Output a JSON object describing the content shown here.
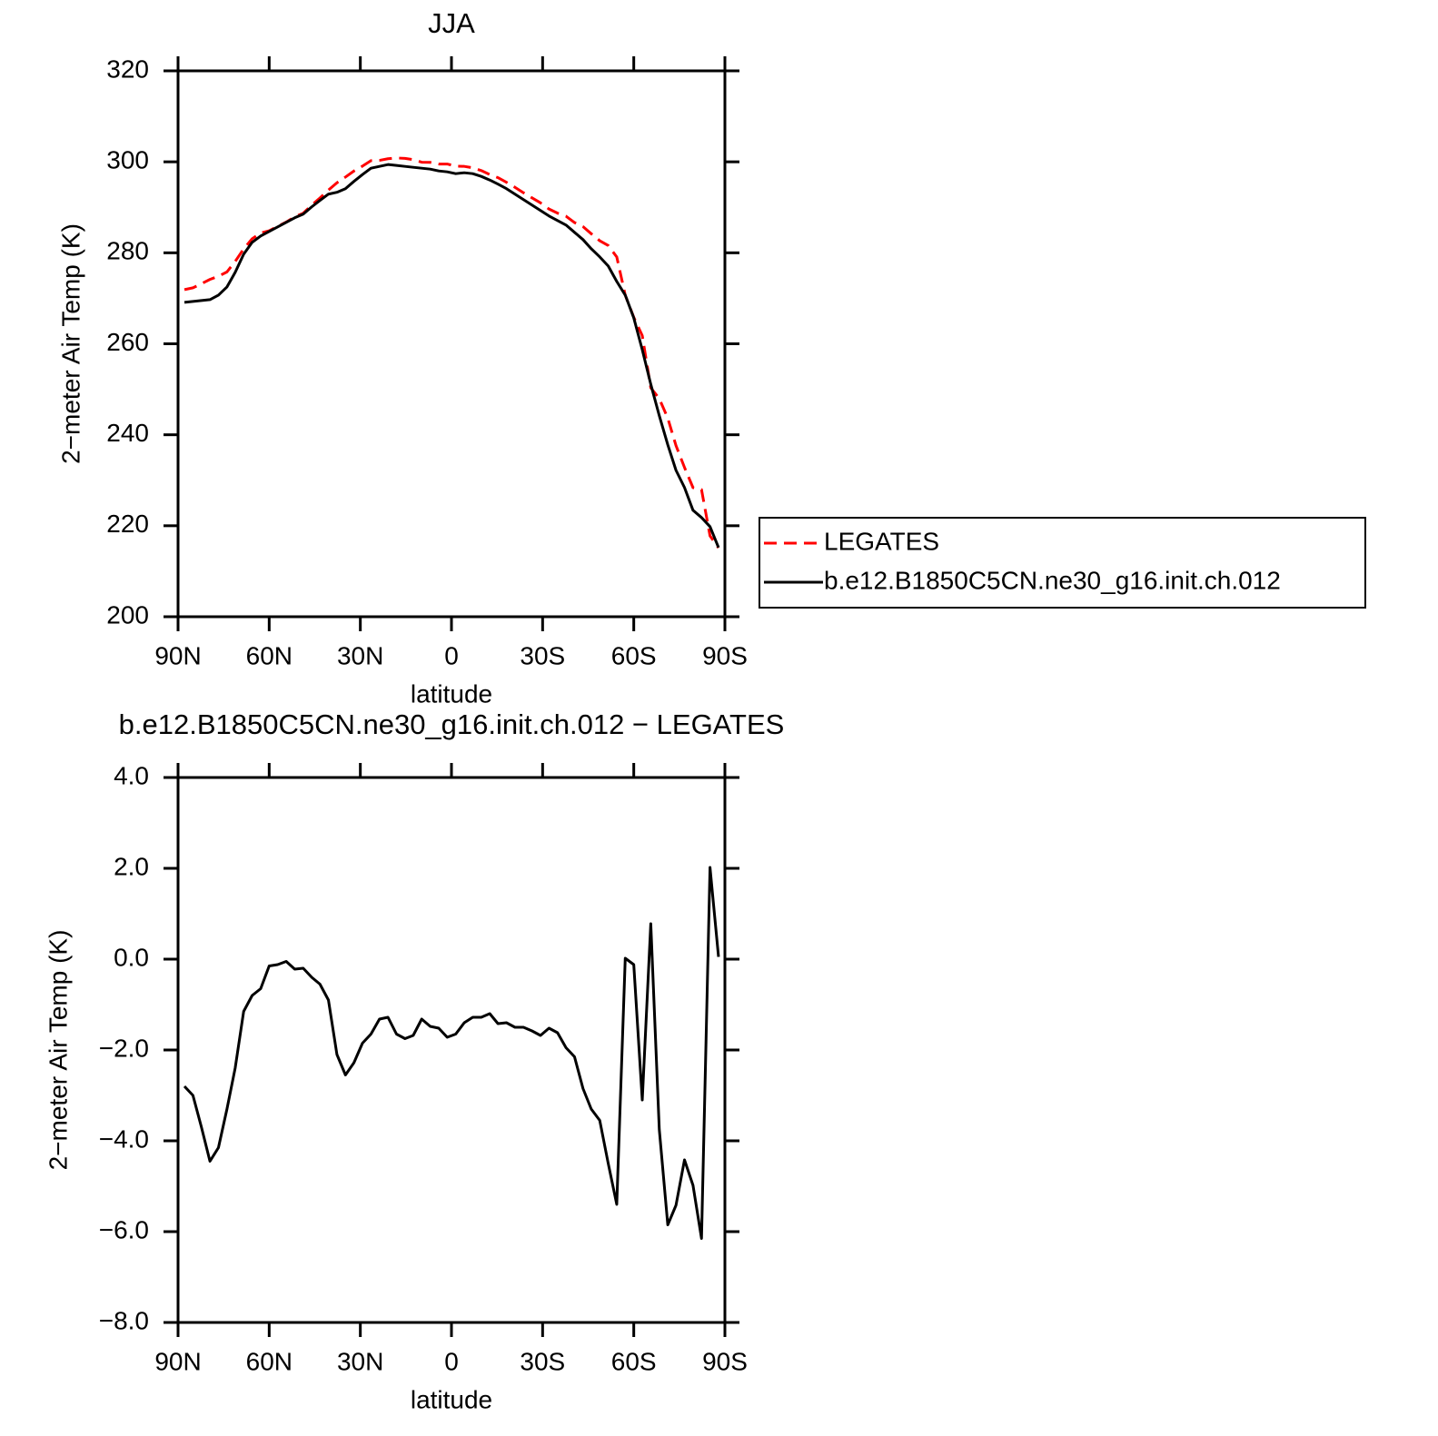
{
  "chart_data": [
    {
      "type": "line",
      "title": "JJA",
      "x_label": "latitude",
      "y_label": "2−meter Air Temp (K)",
      "xlim": [
        90,
        -90
      ],
      "xticks": [
        {
          "value": 90,
          "label": "90N"
        },
        {
          "value": 60,
          "label": "60N"
        },
        {
          "value": 30,
          "label": "30N"
        },
        0,
        {
          "value": -30,
          "label": "30S"
        },
        {
          "value": -60,
          "label": "60S"
        },
        {
          "value": -90,
          "label": "90S"
        }
      ],
      "ylim": [
        200,
        320
      ],
      "yticks": [
        200,
        220,
        240,
        260,
        280,
        300,
        320
      ],
      "legend": true,
      "legend_position": "right",
      "x": [
        87.9,
        85.1,
        82.3,
        79.5,
        76.7,
        73.9,
        71.2,
        68.4,
        65.6,
        62.8,
        60.0,
        57.2,
        54.4,
        51.6,
        48.8,
        46.0,
        43.3,
        40.5,
        37.7,
        34.9,
        32.1,
        29.3,
        26.5,
        23.7,
        20.9,
        18.1,
        15.3,
        12.6,
        9.8,
        7.0,
        4.2,
        1.4,
        -1.4,
        -4.2,
        -7.0,
        -9.8,
        -12.6,
        -15.3,
        -18.1,
        -20.9,
        -23.7,
        -26.5,
        -29.3,
        -32.1,
        -34.9,
        -37.7,
        -40.5,
        -43.3,
        -46.0,
        -48.8,
        -51.6,
        -54.4,
        -57.2,
        -60.0,
        -62.8,
        -65.6,
        -68.4,
        -71.2,
        -73.9,
        -76.7,
        -79.5,
        -82.3,
        -85.1,
        -87.9
      ],
      "series": [
        {
          "name": "LEGATES",
          "color": "#ff0000",
          "line_style": "dashed",
          "values": [
            271.9,
            272.3,
            273.2,
            274.15,
            274.85,
            275.8,
            278.1,
            280.85,
            283.1,
            284.35,
            284.85,
            285.82,
            286.75,
            287.92,
            288.7,
            290.5,
            292.05,
            293.8,
            295.4,
            296.65,
            297.98,
            299.05,
            300.25,
            300.32,
            300.68,
            300.85,
            300.75,
            300.48,
            299.92,
            299.88,
            299.52,
            299.52,
            299.05,
            299.0,
            298.68,
            298.08,
            297.2,
            296.52,
            295.5,
            294.4,
            293.2,
            292.08,
            290.98,
            289.62,
            288.72,
            288.05,
            286.65,
            285.75,
            284.2,
            282.65,
            281.6,
            279.1,
            270.68,
            265.82,
            261.8,
            250.32,
            247.95,
            243.65,
            237.62,
            232.82,
            228.38,
            227.95,
            217.78,
            215.15
          ]
        },
        {
          "name": "b.e12.B1850C5CN.ne30_g16.init.ch.012",
          "color": "#000000",
          "line_style": "solid",
          "values": [
            269.1,
            269.3,
            269.5,
            269.7,
            270.7,
            272.5,
            275.7,
            279.7,
            282.3,
            283.7,
            284.7,
            285.7,
            286.7,
            287.7,
            288.5,
            290.1,
            291.5,
            292.9,
            293.3,
            294.1,
            295.7,
            297.2,
            298.6,
            299.0,
            299.4,
            299.2,
            299.0,
            298.8,
            298.6,
            298.4,
            298.0,
            297.8,
            297.4,
            297.6,
            297.4,
            296.8,
            296.0,
            295.1,
            294.1,
            292.9,
            291.7,
            290.5,
            289.3,
            288.1,
            287.1,
            286.1,
            284.5,
            282.9,
            280.9,
            279.1,
            277.1,
            273.7,
            270.7,
            265.7,
            258.7,
            251.1,
            244.2,
            237.8,
            232.2,
            228.4,
            223.4,
            221.8,
            219.8,
            215.2
          ]
        }
      ]
    },
    {
      "type": "line",
      "title": "b.e12.B1850C5CN.ne30_g16.init.ch.012 − LEGATES",
      "x_label": "latitude",
      "y_label": "2−meter Air Temp (K)",
      "xlim": [
        90,
        -90
      ],
      "xticks": [
        {
          "value": 90,
          "label": "90N"
        },
        {
          "value": 60,
          "label": "60N"
        },
        {
          "value": 30,
          "label": "30N"
        },
        0,
        {
          "value": -30,
          "label": "30S"
        },
        {
          "value": -60,
          "label": "60S"
        },
        {
          "value": -90,
          "label": "90S"
        }
      ],
      "ylim": [
        -8,
        4
      ],
      "yticks": [
        {
          "value": -8,
          "label": "−8.0"
        },
        {
          "value": -6,
          "label": "−6.0"
        },
        {
          "value": -4,
          "label": "−4.0"
        },
        {
          "value": -2,
          "label": "−2.0"
        },
        {
          "value": 0,
          "label": "0.0"
        },
        {
          "value": 2,
          "label": "2.0"
        },
        {
          "value": 4,
          "label": "4.0"
        }
      ],
      "legend": false,
      "x": [
        87.9,
        85.1,
        82.3,
        79.5,
        76.7,
        73.9,
        71.2,
        68.4,
        65.6,
        62.8,
        60.0,
        57.2,
        54.4,
        51.6,
        48.8,
        46.0,
        43.3,
        40.5,
        37.7,
        34.9,
        32.1,
        29.3,
        26.5,
        23.7,
        20.9,
        18.1,
        15.3,
        12.6,
        9.8,
        7.0,
        4.2,
        1.4,
        -1.4,
        -4.2,
        -7.0,
        -9.8,
        -12.6,
        -15.3,
        -18.1,
        -20.9,
        -23.7,
        -26.5,
        -29.3,
        -32.1,
        -34.9,
        -37.7,
        -40.5,
        -43.3,
        -46.0,
        -48.8,
        -51.6,
        -54.4,
        -57.2,
        -60.0,
        -62.8,
        -65.6,
        -68.4,
        -71.2,
        -73.9,
        -76.7,
        -79.5,
        -82.3,
        -85.1,
        -87.9
      ],
      "series": [
        {
          "color": "#000000",
          "line_style": "solid",
          "values": [
            -2.8,
            -3.0,
            -3.7,
            -4.45,
            -4.15,
            -3.3,
            -2.4,
            -1.15,
            -0.8,
            -0.65,
            -0.15,
            -0.12,
            -0.05,
            -0.22,
            -0.2,
            -0.4,
            -0.55,
            -0.9,
            -2.1,
            -2.55,
            -2.28,
            -1.85,
            -1.65,
            -1.32,
            -1.28,
            -1.65,
            -1.75,
            -1.68,
            -1.32,
            -1.48,
            -1.52,
            -1.72,
            -1.65,
            -1.4,
            -1.28,
            -1.28,
            -1.2,
            -1.42,
            -1.4,
            -1.5,
            -1.5,
            -1.58,
            -1.68,
            -1.52,
            -1.62,
            -1.95,
            -2.15,
            -2.85,
            -3.3,
            -3.55,
            -4.5,
            -5.4,
            0.02,
            -0.12,
            -3.1,
            0.78,
            -3.75,
            -5.85,
            -5.42,
            -4.42,
            -4.98,
            -6.15,
            2.02,
            0.05
          ]
        }
      ]
    }
  ]
}
